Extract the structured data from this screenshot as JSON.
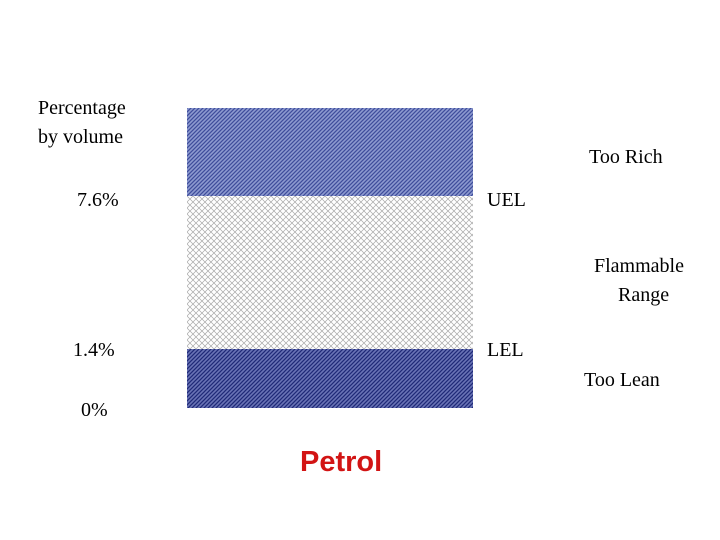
{
  "axis": {
    "title_line1": "Percentage",
    "title_line2": "by volume",
    "upper_value": "7.6%",
    "lower_value": "1.4%",
    "zero_value": "0%"
  },
  "limits": {
    "upper": "UEL",
    "lower": "LEL"
  },
  "zones": {
    "rich": "Too Rich",
    "range_line1": "Flammable",
    "range_line2": "Range",
    "lean": "Too Lean"
  },
  "fuel": {
    "name": "Petrol",
    "color": "#d21414"
  },
  "colors": {
    "rich_band": "#5b6bb0",
    "lean_band": "#3a4490",
    "range_pattern": "#8a8a8a"
  }
}
